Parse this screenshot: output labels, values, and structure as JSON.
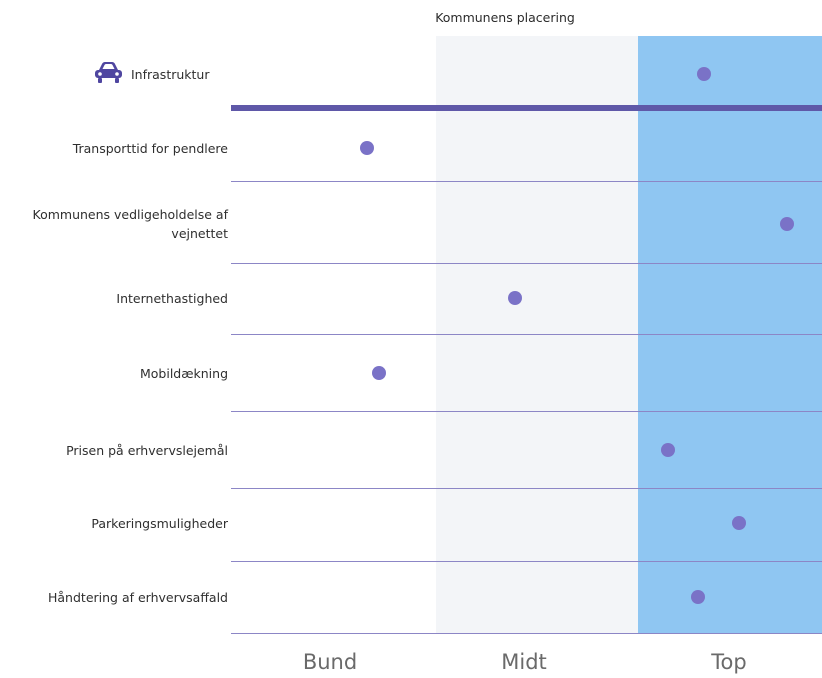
{
  "chart_data": {
    "type": "scatter",
    "title": "Kommunens placering",
    "header": {
      "label": "Infrastruktur",
      "icon": "car-icon",
      "value": 0.8
    },
    "categories": [
      "Transporttid for pendlere",
      "Kommunens vedligeholdelse af vejnettet",
      "Internethastighed",
      "Mobildækning",
      "Prisen på erhvervslejemål",
      "Parkeringsmuligheder",
      "Håndtering af erhvervsaffald"
    ],
    "values": [
      0.23,
      0.94,
      0.48,
      0.25,
      0.74,
      0.86,
      0.79
    ],
    "xlim": [
      0,
      1
    ],
    "x_tick_labels": [
      "Bund",
      "Midt",
      "Top"
    ],
    "grid": true,
    "colors": {
      "marker": "#7a72c7",
      "header_line": "#5f58a8",
      "row_line": "#8c86c6",
      "band_bund": "#ffffff",
      "band_midt": "#f3f5f8",
      "band_top": "#8fc6f2",
      "icon": "#4f46a0"
    }
  }
}
